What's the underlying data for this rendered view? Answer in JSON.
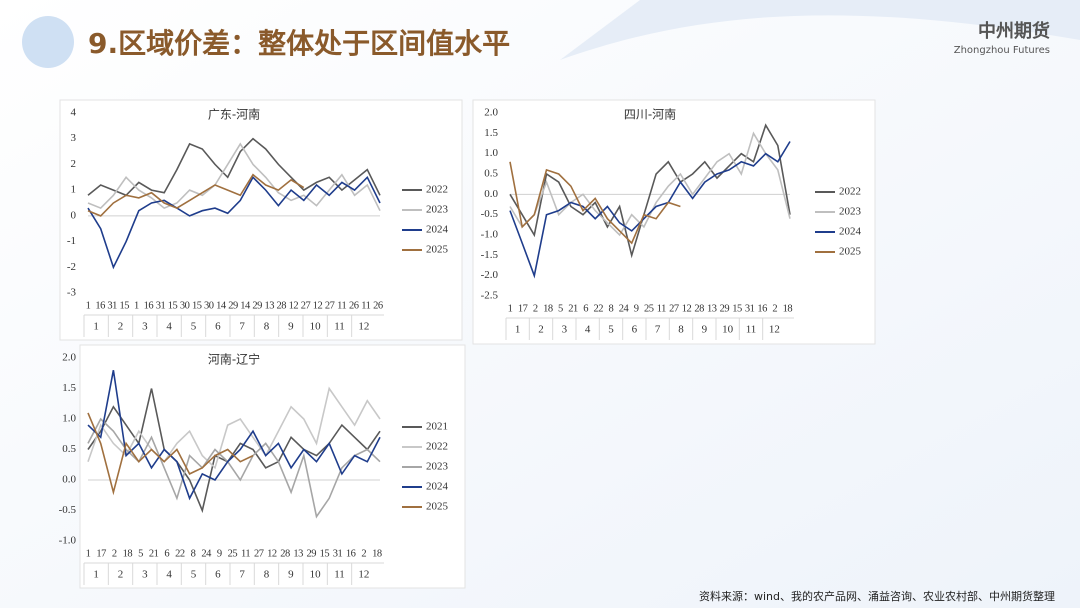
{
  "header": {
    "title": "9.区域价差：整体处于区间值水平",
    "logo": "中州期货",
    "logo_sub": "Zhongzhou Futures"
  },
  "footer": "资料来源：wind、我的农产品网、涌益咨询、农业农村部、中州期货整理",
  "chart_data": [
    {
      "type": "line",
      "title": "广东-河南",
      "categories": [
        "1",
        null,
        "2",
        null,
        "3",
        null,
        "4",
        null,
        "5",
        null,
        "6",
        null,
        "7",
        null,
        "8",
        null,
        "9",
        null,
        "10",
        null,
        "11",
        null,
        "12",
        null
      ],
      "x_tick_labels": [
        "1",
        "16",
        "31",
        "15",
        "1",
        "16",
        "31",
        "15",
        "30",
        "15",
        "30",
        "14",
        "29",
        "14",
        "29",
        "13",
        "28",
        "12",
        "27",
        "12",
        "27",
        "11",
        "26",
        "11",
        "26"
      ],
      "ylim": [
        -3,
        4
      ],
      "yticks": [
        -3,
        -2,
        -1,
        0,
        1,
        2,
        3,
        4
      ],
      "series": [
        {
          "name": "2022",
          "color": "#595959",
          "values": [
            0.8,
            1.2,
            1.0,
            0.8,
            1.3,
            1.0,
            0.9,
            1.8,
            2.8,
            2.6,
            2.0,
            1.5,
            2.5,
            3.0,
            2.6,
            2.0,
            1.5,
            1.0,
            1.3,
            1.5,
            1.0,
            1.4,
            1.8,
            0.8
          ]
        },
        {
          "name": "2023",
          "color": "#bfbfbf",
          "values": [
            0.5,
            0.3,
            0.8,
            1.5,
            1.0,
            0.7,
            0.3,
            0.5,
            1.0,
            0.8,
            1.2,
            2.0,
            2.8,
            2.0,
            1.5,
            0.9,
            0.6,
            0.8,
            0.4,
            1.0,
            1.6,
            0.8,
            1.2,
            0.2
          ]
        },
        {
          "name": "2024",
          "color": "#1f3d8c",
          "values": [
            0.3,
            -0.5,
            -2.0,
            -1.0,
            0.2,
            0.5,
            0.6,
            0.3,
            0.0,
            0.2,
            0.3,
            0.1,
            0.6,
            1.5,
            1.0,
            0.4,
            1.0,
            0.6,
            1.2,
            0.8,
            1.3,
            1.0,
            1.5,
            0.5
          ]
        },
        {
          "name": "2025",
          "color": "#a0703f",
          "values": [
            0.2,
            0.0,
            0.5,
            0.8,
            0.7,
            0.9,
            0.5,
            0.3,
            0.6,
            0.9,
            1.2,
            1.0,
            0.8,
            1.6,
            1.2,
            1.0,
            1.4,
            1.1,
            null,
            null,
            null,
            null,
            null,
            null
          ]
        }
      ]
    },
    {
      "type": "line",
      "title": "四川-河南",
      "categories": [
        "1",
        null,
        "2",
        null,
        "3",
        null,
        "4",
        null,
        "5",
        null,
        "6",
        null,
        "7",
        null,
        "8",
        null,
        "9",
        null,
        "10",
        null,
        "11",
        null,
        "12",
        null
      ],
      "x_tick_labels": [
        "1",
        "17",
        "2",
        "18",
        "5",
        "21",
        "6",
        "22",
        "8",
        "24",
        "9",
        "25",
        "11",
        "27",
        "12",
        "28",
        "13",
        "29",
        "15",
        "31",
        "16",
        "2",
        "18"
      ],
      "ylim": [
        -2.5,
        2.0
      ],
      "yticks": [
        {
          "value": -2.5,
          "label": "-2.5"
        },
        {
          "value": -2.0,
          "label": "-2.0"
        },
        {
          "value": -1.5,
          "label": "-1.5"
        },
        {
          "value": -1.0,
          "label": "-1.0"
        },
        {
          "value": -0.5,
          "label": "-0.5"
        },
        {
          "value": 0,
          "label": "0.0"
        },
        {
          "value": 0.5,
          "label": "0.5"
        },
        {
          "value": 1.0,
          "label": "1.0"
        },
        {
          "value": 1.5,
          "label": "1.5"
        },
        {
          "value": 2.0,
          "label": "2.0"
        }
      ],
      "series": [
        {
          "name": "2022",
          "color": "#595959",
          "values": [
            0.0,
            -0.5,
            -1.0,
            0.5,
            0.3,
            -0.3,
            -0.5,
            -0.2,
            -0.8,
            -0.3,
            -1.5,
            -0.5,
            0.5,
            0.8,
            0.3,
            0.5,
            0.8,
            0.4,
            0.7,
            1.0,
            0.8,
            1.7,
            1.2,
            -0.5
          ]
        },
        {
          "name": "2023",
          "color": "#bfbfbf",
          "values": [
            -0.3,
            -0.8,
            -0.5,
            0.3,
            -0.5,
            -0.2,
            0.0,
            -0.4,
            -0.7,
            -1.0,
            -0.5,
            -0.8,
            -0.2,
            0.2,
            0.5,
            0.0,
            0.4,
            0.8,
            1.0,
            0.5,
            1.5,
            1.0,
            0.6,
            -0.6
          ]
        },
        {
          "name": "2024",
          "color": "#1f3d8c",
          "values": [
            -0.4,
            -1.2,
            -2.0,
            -0.5,
            -0.4,
            -0.2,
            -0.3,
            -0.6,
            -0.3,
            -0.7,
            -0.9,
            -0.6,
            -0.3,
            -0.2,
            0.3,
            -0.1,
            0.3,
            0.5,
            0.6,
            0.8,
            0.7,
            1.0,
            0.8,
            1.3
          ]
        },
        {
          "name": "2025",
          "color": "#a0703f",
          "values": [
            0.8,
            -0.8,
            -0.5,
            0.6,
            0.5,
            0.2,
            -0.4,
            -0.1,
            -0.6,
            -0.9,
            -1.2,
            -0.5,
            -0.6,
            -0.2,
            -0.3,
            null,
            null,
            null,
            null,
            null,
            null,
            null,
            null,
            null
          ]
        }
      ]
    },
    {
      "type": "line",
      "title": "河南-辽宁",
      "categories": [
        "1",
        null,
        "2",
        null,
        "3",
        null,
        "4",
        null,
        "5",
        null,
        "6",
        null,
        "7",
        null,
        "8",
        null,
        "9",
        null,
        "10",
        null,
        "11",
        null,
        "12",
        null
      ],
      "x_tick_labels": [
        "1",
        "17",
        "2",
        "18",
        "5",
        "21",
        "6",
        "22",
        "8",
        "24",
        "9",
        "25",
        "11",
        "27",
        "12",
        "28",
        "13",
        "29",
        "15",
        "31",
        "16",
        "2",
        "18"
      ],
      "ylim": [
        -1.0,
        2.0
      ],
      "yticks": [
        {
          "value": -1.0,
          "label": "-1.0"
        },
        {
          "value": -0.5,
          "label": "-0.5"
        },
        {
          "value": 0,
          "label": "0.0"
        },
        {
          "value": 0.5,
          "label": "0.5"
        },
        {
          "value": 1.0,
          "label": "1.0"
        },
        {
          "value": 1.5,
          "label": "1.5"
        },
        {
          "value": 2.0,
          "label": "2.0"
        }
      ],
      "series": [
        {
          "name": "2021",
          "color": "#595959",
          "values": [
            0.5,
            0.8,
            1.2,
            0.9,
            0.6,
            1.5,
            0.5,
            0.3,
            0.0,
            -0.5,
            0.4,
            0.3,
            0.6,
            0.5,
            0.2,
            0.3,
            0.7,
            0.5,
            0.4,
            0.6,
            0.9,
            0.7,
            0.5,
            0.8
          ]
        },
        {
          "name": "2022",
          "color": "#c8c8c8",
          "values": [
            0.3,
            0.9,
            0.6,
            0.4,
            0.8,
            0.5,
            0.3,
            0.6,
            0.8,
            0.4,
            0.2,
            0.9,
            1.0,
            0.7,
            0.4,
            0.8,
            1.2,
            1.0,
            0.6,
            1.5,
            1.2,
            0.9,
            1.3,
            1.0
          ]
        },
        {
          "name": "2023",
          "color": "#a6a6a6",
          "values": [
            0.6,
            1.0,
            0.8,
            0.5,
            0.3,
            0.7,
            0.2,
            -0.3,
            0.4,
            0.2,
            0.5,
            0.3,
            0.0,
            0.4,
            0.6,
            0.3,
            -0.2,
            0.4,
            -0.6,
            -0.3,
            0.2,
            0.4,
            0.5,
            0.3
          ]
        },
        {
          "name": "2024",
          "color": "#1f3d8c",
          "values": [
            0.9,
            0.7,
            1.8,
            0.4,
            0.6,
            0.2,
            0.5,
            0.3,
            -0.3,
            0.1,
            0.0,
            0.3,
            0.5,
            0.8,
            0.4,
            0.6,
            0.2,
            0.5,
            0.3,
            0.6,
            0.1,
            0.4,
            0.3,
            0.7
          ]
        },
        {
          "name": "2025",
          "color": "#a0703f",
          "values": [
            1.1,
            0.6,
            -0.2,
            0.6,
            0.3,
            0.5,
            0.3,
            0.5,
            0.1,
            0.2,
            0.4,
            0.5,
            0.3,
            0.4,
            null,
            null,
            null,
            null,
            null,
            null,
            null,
            null,
            null,
            null
          ]
        }
      ]
    }
  ]
}
